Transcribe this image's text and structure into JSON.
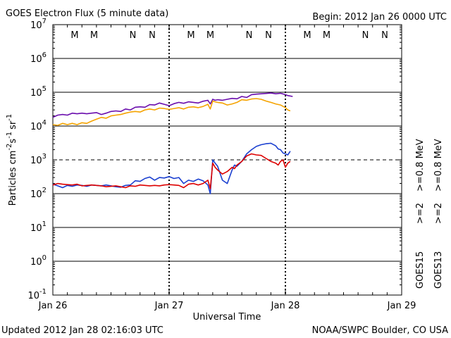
{
  "header": {
    "title": "GOES Electron Flux (5 minute data)",
    "begin": "Begin: 2012 Jan 26 0000 UTC"
  },
  "footer": {
    "updated": "Updated 2012 Jan 28 02:16:03 UTC",
    "credit": "NOAA/SWPC Boulder, CO USA"
  },
  "chart_data": {
    "type": "line",
    "title": "GOES Electron Flux (5 minute data)",
    "xlabel": "Universal Time",
    "ylabel_parts": {
      "base": "Particles cm",
      "exp1": "-2",
      "s": "s",
      "exp2": "-1",
      "sr": "sr",
      "exp3": "-1"
    },
    "y_scale": "log",
    "ylim": [
      0.1,
      10000000
    ],
    "y_ticks": [
      {
        "value": 10000000,
        "base": "10",
        "exp": "7"
      },
      {
        "value": 1000000,
        "base": "10",
        "exp": "6"
      },
      {
        "value": 100000,
        "base": "10",
        "exp": "5"
      },
      {
        "value": 10000,
        "base": "10",
        "exp": "4"
      },
      {
        "value": 1000,
        "base": "10",
        "exp": "3"
      },
      {
        "value": 100,
        "base": "10",
        "exp": "2"
      },
      {
        "value": 10,
        "base": "10",
        "exp": "1"
      },
      {
        "value": 1,
        "base": "10",
        "exp": "0"
      },
      {
        "value": 0.1,
        "base": "10",
        "exp": "-1"
      }
    ],
    "x_units": "hours since 2012 Jan 26 0000 UTC",
    "xlim": [
      0,
      72
    ],
    "x_ticks": [
      {
        "hours": 0,
        "label": "Jan 26"
      },
      {
        "hours": 24,
        "label": "Jan 27"
      },
      {
        "hours": 48,
        "label": "Jan 28"
      },
      {
        "hours": 72,
        "label": "Jan 29"
      }
    ],
    "day_boundaries": [
      24,
      48
    ],
    "threshold": {
      "value": 1000,
      "style": "dashed"
    },
    "mn_markers": [
      {
        "hours": 4.5,
        "label": "M",
        "color": "#dd0000"
      },
      {
        "hours": 8.5,
        "label": "M",
        "color": "#1a3fd0"
      },
      {
        "hours": 16.5,
        "label": "N",
        "color": "#dd0000"
      },
      {
        "hours": 20.5,
        "label": "N",
        "color": "#1a3fd0"
      },
      {
        "hours": 28.5,
        "label": "M",
        "color": "#dd0000"
      },
      {
        "hours": 32.5,
        "label": "M",
        "color": "#1a3fd0"
      },
      {
        "hours": 40.5,
        "label": "N",
        "color": "#dd0000"
      },
      {
        "hours": 44.5,
        "label": "N",
        "color": "#1a3fd0"
      },
      {
        "hours": 52.5,
        "label": "M",
        "color": "#dd0000"
      },
      {
        "hours": 56.5,
        "label": "M",
        "color": "#1a3fd0"
      },
      {
        "hours": 64.5,
        "label": "N",
        "color": "#dd0000"
      },
      {
        "hours": 68.5,
        "label": "N",
        "color": "#1a3fd0"
      }
    ],
    "legend": {
      "placement": "right",
      "satellite_upper": "GOES15",
      "satellite_lower": "GOES13",
      "energy_upper_15": ">=0.8  MeV",
      "energy_lower_15": ">=2",
      "energy_upper_13": ">=0.8  MeV",
      "energy_lower_13": ">=2"
    },
    "series": [
      {
        "name": "GOES15 >=0.8 MeV",
        "color": "#6a0dad",
        "x": [
          0,
          1,
          2,
          3,
          4,
          5,
          6,
          7,
          8,
          9,
          10,
          11,
          12,
          13,
          14,
          15,
          16,
          17,
          18,
          19,
          20,
          21,
          22,
          23,
          24,
          25,
          26,
          27,
          28,
          29,
          30,
          31,
          32,
          32.5,
          33,
          33.5,
          34,
          35,
          36,
          37,
          38,
          39,
          40,
          41,
          42,
          43,
          44,
          45,
          46,
          47,
          48,
          48.5,
          49.5
        ],
        "values": [
          18000,
          21000,
          22000,
          21000,
          24000,
          23000,
          24000,
          23000,
          24000,
          25000,
          22000,
          24000,
          27000,
          28000,
          27000,
          32000,
          30000,
          36000,
          37000,
          36000,
          43000,
          42000,
          48000,
          44000,
          40000,
          46000,
          50000,
          47000,
          52000,
          50000,
          48000,
          54000,
          58000,
          45000,
          62000,
          58000,
          60000,
          58000,
          62000,
          66000,
          64000,
          75000,
          70000,
          85000,
          88000,
          90000,
          92000,
          95000,
          90000,
          93000,
          85000,
          80000,
          75000
        ]
      },
      {
        "name": "GOES13 >=0.8 MeV",
        "color": "#f5a300",
        "x": [
          0,
          1,
          2,
          3,
          4,
          5,
          6,
          7,
          8,
          9,
          10,
          11,
          12,
          13,
          14,
          15,
          16,
          17,
          18,
          19,
          20,
          21,
          22,
          23,
          24,
          25,
          26,
          27,
          28,
          29,
          30,
          31,
          32,
          32.5,
          33,
          33.5,
          34,
          35,
          36,
          37,
          38,
          39,
          40,
          41,
          42,
          43,
          44,
          45,
          46,
          47,
          48,
          48.5,
          49
        ],
        "values": [
          11000,
          10500,
          12000,
          11000,
          12000,
          11000,
          12500,
          12000,
          14000,
          16000,
          18000,
          17000,
          20000,
          21000,
          22000,
          24000,
          26000,
          27000,
          26000,
          30000,
          32000,
          30000,
          34000,
          33000,
          31000,
          33000,
          35000,
          32000,
          36000,
          37000,
          35000,
          38000,
          44000,
          32000,
          55000,
          52000,
          50000,
          48000,
          42000,
          45000,
          50000,
          60000,
          58000,
          63000,
          65000,
          62000,
          55000,
          50000,
          45000,
          42000,
          35000,
          30000,
          28000
        ]
      },
      {
        "name": "GOES15 >=2 MeV",
        "color": "#1a3fd0",
        "x": [
          0,
          1,
          2,
          3,
          4,
          5,
          6,
          7,
          8,
          9,
          10,
          11,
          12,
          13,
          14,
          15,
          16,
          17,
          18,
          19,
          20,
          21,
          22,
          23,
          24,
          25,
          26,
          27,
          28,
          29,
          30,
          31,
          32,
          32.5,
          33,
          33.5,
          34,
          35,
          36,
          37,
          37.5,
          38,
          39,
          40,
          41,
          42,
          43,
          44,
          45,
          46,
          46.5,
          47,
          47.5,
          48,
          48.5,
          49
        ],
        "values": [
          190,
          170,
          150,
          175,
          165,
          180,
          175,
          165,
          180,
          175,
          170,
          180,
          170,
          160,
          155,
          175,
          180,
          240,
          230,
          280,
          310,
          250,
          300,
          290,
          320,
          280,
          300,
          200,
          250,
          230,
          270,
          240,
          180,
          100,
          1000,
          800,
          650,
          250,
          200,
          500,
          700,
          650,
          900,
          1500,
          2000,
          2500,
          2800,
          3000,
          3100,
          2600,
          2100,
          2000,
          1600,
          1500,
          1400,
          1800
        ]
      },
      {
        "name": "GOES13 >=2 MeV",
        "color": "#dd0000",
        "x": [
          0,
          1,
          2,
          3,
          4,
          5,
          6,
          7,
          8,
          9,
          10,
          11,
          12,
          13,
          14,
          15,
          16,
          17,
          18,
          19,
          20,
          21,
          22,
          23,
          24,
          25,
          26,
          27,
          28,
          29,
          30,
          31,
          32,
          32.5,
          33,
          33.5,
          34,
          35,
          36,
          37,
          37.5,
          38,
          39,
          40,
          41,
          42,
          43,
          44,
          45,
          46,
          46.5,
          47,
          47.5,
          48,
          48.5,
          49
        ],
        "values": [
          180,
          200,
          190,
          185,
          180,
          190,
          170,
          175,
          180,
          175,
          170,
          160,
          165,
          170,
          160,
          150,
          170,
          165,
          180,
          175,
          170,
          175,
          170,
          180,
          185,
          180,
          175,
          150,
          190,
          200,
          180,
          200,
          250,
          140,
          800,
          600,
          500,
          380,
          450,
          600,
          550,
          700,
          900,
          1300,
          1500,
          1400,
          1350,
          1100,
          900,
          800,
          700,
          900,
          1000,
          600,
          800,
          900
        ]
      }
    ]
  }
}
